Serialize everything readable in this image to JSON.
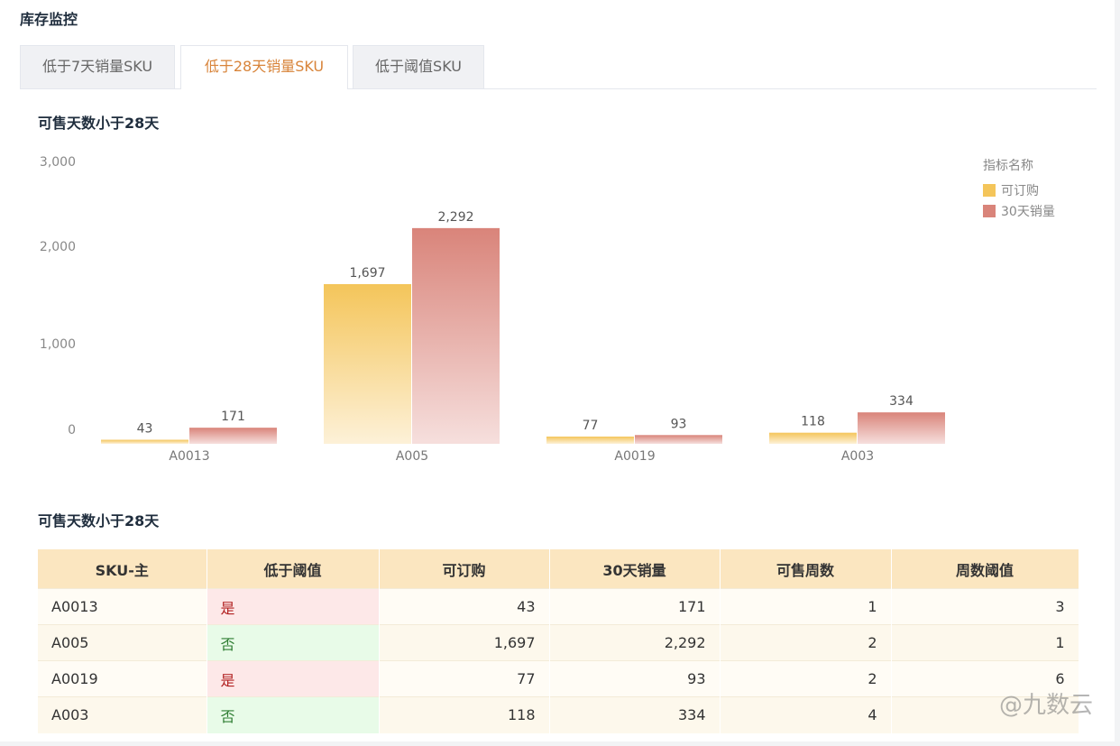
{
  "page": {
    "title": "库存监控"
  },
  "tabs": [
    {
      "label": "低于7天销量SKU",
      "active": false
    },
    {
      "label": "低于28天销量SKU",
      "active": true
    },
    {
      "label": "低于阈值SKU",
      "active": false
    }
  ],
  "chart_section_title": "可售天数小于28天",
  "table_section_title": "可售天数小于28天",
  "chart_data": {
    "type": "bar",
    "categories": [
      "A0013",
      "A005",
      "A0019",
      "A003"
    ],
    "series": [
      {
        "name": "可订购",
        "values": [
          43,
          1697,
          77,
          118
        ],
        "color": "#f4c55a"
      },
      {
        "name": "30天销量",
        "values": [
          171,
          2292,
          93,
          334
        ],
        "color": "#d9847a"
      }
    ],
    "data_labels": [
      [
        "43",
        "1,697",
        "77",
        "118"
      ],
      [
        "171",
        "2,292",
        "93",
        "334"
      ]
    ],
    "yticks": [
      "0",
      "1,000",
      "2,000",
      "3,000"
    ],
    "ylim": [
      0,
      3000
    ],
    "legend_title": "指标名称",
    "legend_position": "top-right"
  },
  "table": {
    "headers": [
      "SKU-主",
      "低于阈值",
      "可订购",
      "30天销量",
      "可售周数",
      "周数阈值"
    ],
    "rows": [
      [
        "A0013",
        "是",
        "43",
        "171",
        "1",
        "3"
      ],
      [
        "A005",
        "否",
        "1,697",
        "2,292",
        "2",
        "1"
      ],
      [
        "A0019",
        "是",
        "77",
        "93",
        "2",
        "6"
      ],
      [
        "A003",
        "否",
        "118",
        "334",
        "4",
        ""
      ]
    ]
  },
  "watermark": "@九数云"
}
